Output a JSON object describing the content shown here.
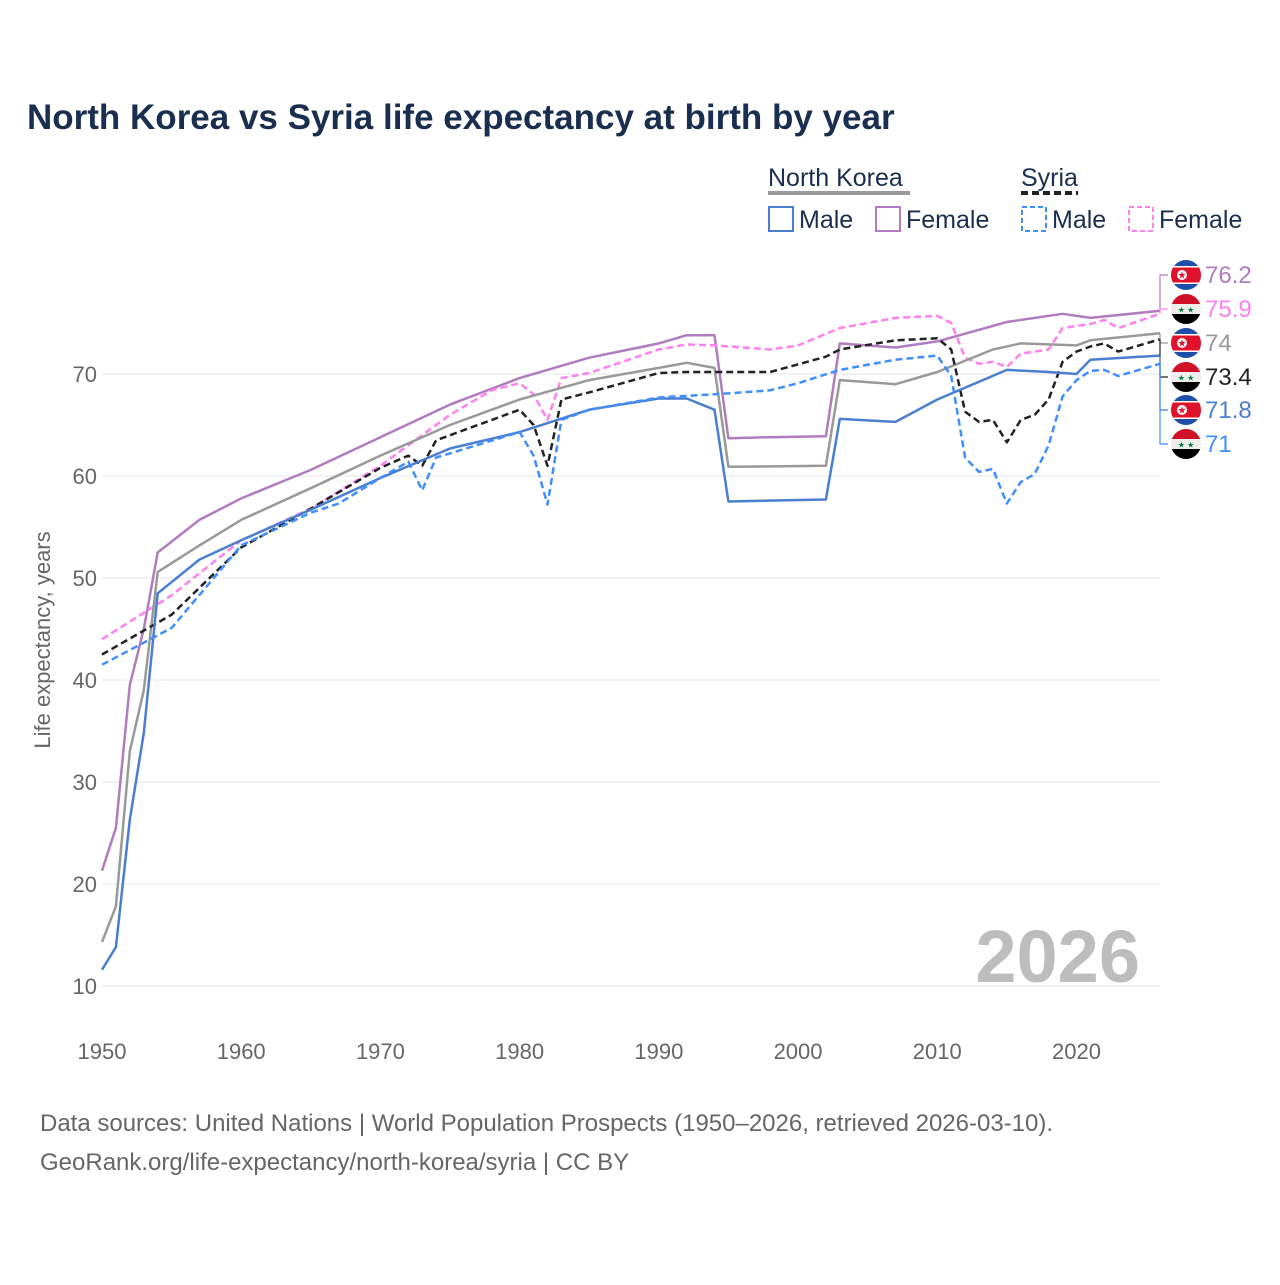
{
  "chart_data": {
    "type": "line",
    "title": "North Korea vs Syria life expectancy at birth by year",
    "xlabel": "",
    "ylabel": "Life expectancy, years",
    "xlim": [
      1950,
      2026
    ],
    "ylim": [
      10,
      78
    ],
    "x_ticks": [
      "1950",
      "1960",
      "1970",
      "1980",
      "1990",
      "2000",
      "2010",
      "2020"
    ],
    "y_ticks": [
      "10",
      "20",
      "30",
      "40",
      "50",
      "60",
      "70"
    ],
    "grid": true,
    "year_watermark": "2026",
    "legend": {
      "placement": "top-right",
      "groups": [
        {
          "name": "North Korea",
          "items": [
            "Male",
            "Female"
          ]
        },
        {
          "name": "Syria",
          "items": [
            "Male",
            "Female"
          ]
        }
      ]
    },
    "series": [
      {
        "name": "North Korea Female",
        "color": "#b07cbf",
        "dashed": false,
        "end_label": "76.2",
        "points": [
          [
            1950,
            21.3
          ],
          [
            1951,
            25.5
          ],
          [
            1952,
            39.5
          ],
          [
            1953,
            45
          ],
          [
            1954,
            52.5
          ],
          [
            1957,
            55.7
          ],
          [
            1960,
            57.8
          ],
          [
            1965,
            60.6
          ],
          [
            1970,
            63.8
          ],
          [
            1975,
            67
          ],
          [
            1980,
            69.6
          ],
          [
            1985,
            71.6
          ],
          [
            1990,
            73
          ],
          [
            1992,
            73.8
          ],
          [
            1994,
            73.8
          ],
          [
            1995,
            63.7
          ],
          [
            1998,
            63.8
          ],
          [
            2002,
            63.9
          ],
          [
            2003,
            73
          ],
          [
            2007,
            72.6
          ],
          [
            2010,
            73.2
          ],
          [
            2015,
            75.1
          ],
          [
            2019,
            75.9
          ],
          [
            2021,
            75.5
          ],
          [
            2026,
            76.2
          ]
        ]
      },
      {
        "name": "Syria Female",
        "color": "#ff80f0",
        "dashed": true,
        "end_label": "75.9",
        "points": [
          [
            1950,
            44
          ],
          [
            1955,
            48.3
          ],
          [
            1960,
            53.7
          ],
          [
            1965,
            56.8
          ],
          [
            1970,
            61
          ],
          [
            1975,
            66
          ],
          [
            1978,
            68.4
          ],
          [
            1980,
            69.1
          ],
          [
            1981,
            68
          ],
          [
            1982,
            65.5
          ],
          [
            1983,
            69.6
          ],
          [
            1985,
            70.1
          ],
          [
            1990,
            72.4
          ],
          [
            1992,
            72.9
          ],
          [
            1994,
            72.8
          ],
          [
            1998,
            72.4
          ],
          [
            2000,
            72.8
          ],
          [
            2003,
            74.5
          ],
          [
            2007,
            75.5
          ],
          [
            2010,
            75.7
          ],
          [
            2011,
            75
          ],
          [
            2012,
            71.6
          ],
          [
            2013,
            71
          ],
          [
            2014,
            71.2
          ],
          [
            2015,
            70.7
          ],
          [
            2016,
            72
          ],
          [
            2018,
            72.4
          ],
          [
            2019,
            74.5
          ],
          [
            2021,
            74.9
          ],
          [
            2022,
            75.3
          ],
          [
            2023,
            74.5
          ],
          [
            2026,
            75.9
          ]
        ]
      },
      {
        "name": "North Korea",
        "color": "#999999",
        "dashed": false,
        "end_label": "74",
        "points": [
          [
            1950,
            14.3
          ],
          [
            1951,
            17.8
          ],
          [
            1952,
            33
          ],
          [
            1953,
            39
          ],
          [
            1954,
            50.6
          ],
          [
            1957,
            53.2
          ],
          [
            1960,
            55.7
          ],
          [
            1965,
            58.8
          ],
          [
            1970,
            62
          ],
          [
            1975,
            65
          ],
          [
            1980,
            67.5
          ],
          [
            1985,
            69.4
          ],
          [
            1990,
            70.6
          ],
          [
            1992,
            71.1
          ],
          [
            1994,
            70.6
          ],
          [
            1995,
            60.9
          ],
          [
            2002,
            61
          ],
          [
            2003,
            69.4
          ],
          [
            2007,
            69
          ],
          [
            2010,
            70.2
          ],
          [
            2014,
            72.4
          ],
          [
            2016,
            73
          ],
          [
            2020,
            72.8
          ],
          [
            2021,
            73.3
          ],
          [
            2026,
            74
          ]
        ]
      },
      {
        "name": "Syria",
        "color": "#222222",
        "dashed": true,
        "end_label": "73.4",
        "points": [
          [
            1950,
            42.5
          ],
          [
            1955,
            46.4
          ],
          [
            1960,
            53
          ],
          [
            1965,
            56.8
          ],
          [
            1970,
            60.8
          ],
          [
            1972,
            62
          ],
          [
            1973,
            61
          ],
          [
            1974,
            63.5
          ],
          [
            1980,
            66.5
          ],
          [
            1981,
            65
          ],
          [
            1982,
            61
          ],
          [
            1983,
            67.5
          ],
          [
            1985,
            68.2
          ],
          [
            1990,
            70.1
          ],
          [
            1992,
            70.2
          ],
          [
            1998,
            70.2
          ],
          [
            2002,
            71.7
          ],
          [
            2003,
            72.4
          ],
          [
            2007,
            73.3
          ],
          [
            2010,
            73.5
          ],
          [
            2011,
            72.4
          ],
          [
            2012,
            66.3
          ],
          [
            2013,
            65.3
          ],
          [
            2014,
            65.5
          ],
          [
            2015,
            63.3
          ],
          [
            2016,
            65.5
          ],
          [
            2017,
            66
          ],
          [
            2018,
            67.5
          ],
          [
            2019,
            71.2
          ],
          [
            2020,
            72.2
          ],
          [
            2021,
            72.7
          ],
          [
            2022,
            73
          ],
          [
            2023,
            72.2
          ],
          [
            2026,
            73.4
          ]
        ]
      },
      {
        "name": "North Korea Male",
        "color": "#4a7fd0",
        "dashed": false,
        "end_label": "71.8",
        "points": [
          [
            1950,
            11.6
          ],
          [
            1951,
            13.8
          ],
          [
            1952,
            26.3
          ],
          [
            1953,
            34.8
          ],
          [
            1954,
            48.5
          ],
          [
            1957,
            51.8
          ],
          [
            1960,
            53.7
          ],
          [
            1965,
            56.7
          ],
          [
            1970,
            59.8
          ],
          [
            1975,
            62.7
          ],
          [
            1980,
            64.3
          ],
          [
            1985,
            66.5
          ],
          [
            1990,
            67.6
          ],
          [
            1992,
            67.6
          ],
          [
            1994,
            66.5
          ],
          [
            1995,
            57.5
          ],
          [
            2002,
            57.7
          ],
          [
            2003,
            65.6
          ],
          [
            2007,
            65.3
          ],
          [
            2010,
            67.5
          ],
          [
            2015,
            70.4
          ],
          [
            2018,
            70.2
          ],
          [
            2020,
            70
          ],
          [
            2021,
            71.4
          ],
          [
            2026,
            71.8
          ]
        ]
      },
      {
        "name": "Syria Male",
        "color": "#3f8fff",
        "dashed": true,
        "end_label": "71",
        "points": [
          [
            1950,
            41.5
          ],
          [
            1955,
            45.1
          ],
          [
            1960,
            53.2
          ],
          [
            1965,
            56.4
          ],
          [
            1967,
            57.3
          ],
          [
            1970,
            59.8
          ],
          [
            1972,
            61.4
          ],
          [
            1973,
            58.6
          ],
          [
            1974,
            61.8
          ],
          [
            1980,
            64.3
          ],
          [
            1981,
            62
          ],
          [
            1982,
            57.2
          ],
          [
            1983,
            65.5
          ],
          [
            1985,
            66.5
          ],
          [
            1990,
            67.7
          ],
          [
            1995,
            68.1
          ],
          [
            1998,
            68.4
          ],
          [
            2000,
            69.1
          ],
          [
            2003,
            70.4
          ],
          [
            2007,
            71.4
          ],
          [
            2010,
            71.8
          ],
          [
            2011,
            69.8
          ],
          [
            2012,
            61.8
          ],
          [
            2013,
            60.4
          ],
          [
            2014,
            60.7
          ],
          [
            2015,
            57.3
          ],
          [
            2016,
            59.4
          ],
          [
            2017,
            60.2
          ],
          [
            2018,
            63
          ],
          [
            2019,
            67.8
          ],
          [
            2020,
            69.4
          ],
          [
            2021,
            70.3
          ],
          [
            2022,
            70.4
          ],
          [
            2023,
            69.8
          ],
          [
            2026,
            71
          ]
        ]
      }
    ],
    "source_lines": [
      "Data sources: United Nations | World Population Prospects (1950–2026, retrieved 2026-03-10).",
      "GeoRank.org/life-expectancy/north-korea/syria | CC BY"
    ]
  }
}
